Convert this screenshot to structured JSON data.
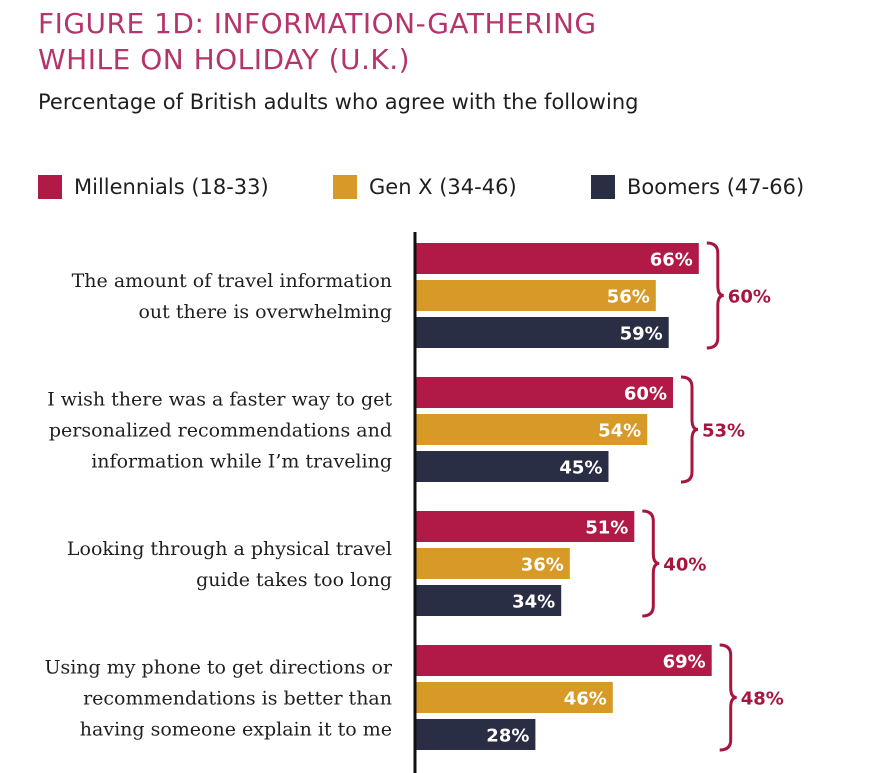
{
  "title_lines": [
    "FIGURE 1D: INFORMATION-GATHERING",
    "WHILE ON HOLIDAY (U.K.)"
  ],
  "subtitle": "Percentage of British adults who agree with the following",
  "colors": {
    "title": "#b4346b",
    "millennials": "#b11a47",
    "genx": "#d89a27",
    "boomers": "#2a2e45",
    "bracket": "#a8153f",
    "axis": "#111111"
  },
  "chart_data": {
    "type": "bar",
    "orientation": "horizontal",
    "title": "FIGURE 1D: INFORMATION-GATHERING WHILE ON HOLIDAY (U.K.)",
    "subtitle": "Percentage of British adults who agree with the following",
    "legend_position": "top",
    "xlim": [
      0,
      100
    ],
    "grid": false,
    "value_unit": "%",
    "series": [
      {
        "name": "Millennials (18-33)",
        "values": [
          66,
          60,
          51,
          69
        ]
      },
      {
        "name": "Gen X (34-46)",
        "values": [
          56,
          54,
          36,
          46
        ]
      },
      {
        "name": "Boomers (47-66)",
        "values": [
          59,
          45,
          34,
          28
        ]
      }
    ],
    "categories": [
      {
        "lines": [
          "The amount of travel information",
          "out there is overwhelming"
        ],
        "overall": 60
      },
      {
        "lines": [
          "I wish there was a faster way to get",
          "personalized recommendations and",
          "information while I’m traveling"
        ],
        "overall": 53
      },
      {
        "lines": [
          "Looking through a physical travel",
          "guide takes too long"
        ],
        "overall": 40
      },
      {
        "lines": [
          "Using my phone to get directions or",
          "recommendations is better than",
          "having someone explain it to me"
        ],
        "overall": 48
      }
    ]
  }
}
